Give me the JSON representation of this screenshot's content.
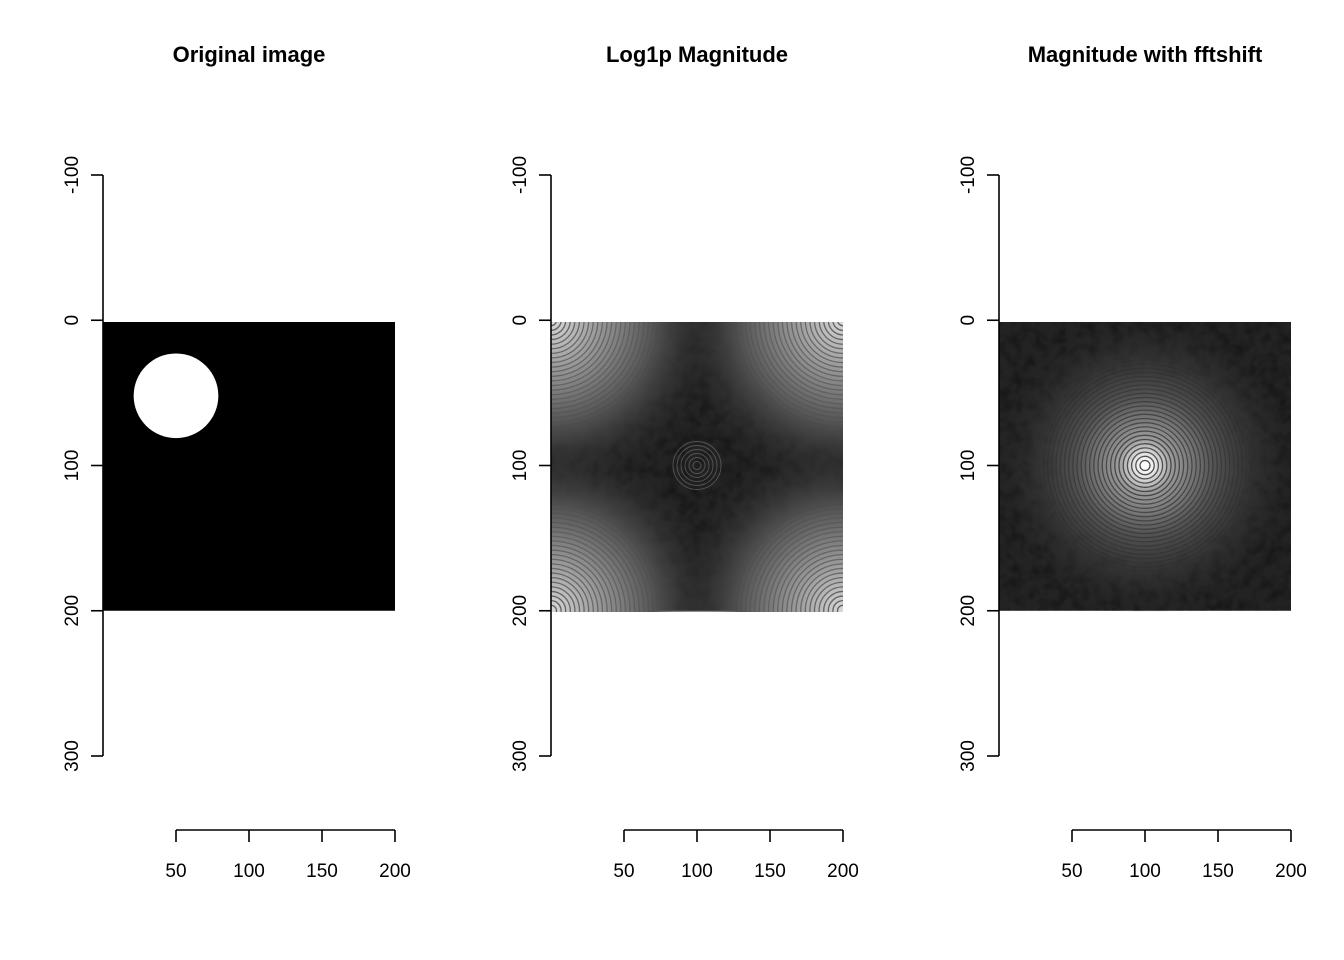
{
  "chart_data": [
    {
      "type": "heatmap",
      "title": "Original image",
      "image": "binary mask with a filled white disk on black",
      "xlabel": "",
      "ylabel": "",
      "xticks": [
        50,
        100,
        150,
        200
      ],
      "yticks": [
        -100,
        0,
        100,
        200,
        300
      ],
      "xlim": [
        0,
        200
      ],
      "ylim": [
        -100,
        300
      ],
      "image_extent": {
        "x": [
          0,
          200
        ],
        "y": [
          0,
          200
        ]
      },
      "disk": {
        "center_x": 50,
        "center_y": 52,
        "radius": 29
      },
      "colors": {
        "background": "#000000",
        "foreground": "#ffffff"
      }
    },
    {
      "type": "heatmap",
      "title": "Log1p Magnitude",
      "image": "log1p FFT magnitude, unshifted; bright ring patterns at corners",
      "xlabel": "",
      "ylabel": "",
      "xticks": [
        50,
        100,
        150,
        200
      ],
      "yticks": [
        -100,
        0,
        100,
        200,
        300
      ],
      "xlim": [
        0,
        200
      ],
      "ylim": [
        -100,
        300
      ],
      "image_extent": {
        "x": [
          0,
          200
        ],
        "y": [
          0,
          200
        ]
      },
      "bright_centers": [
        [
          0,
          0
        ],
        [
          200,
          0
        ],
        [
          0,
          200
        ],
        [
          200,
          200
        ]
      ],
      "colors": {
        "low": "#000000",
        "high": "#ffffff"
      }
    },
    {
      "type": "heatmap",
      "title": "Magnitude with fftshift",
      "image": "shifted FFT magnitude; concentric rings centered in the middle",
      "xlabel": "",
      "ylabel": "",
      "xticks": [
        50,
        100,
        150,
        200
      ],
      "yticks": [
        -100,
        0,
        100,
        200,
        300
      ],
      "xlim": [
        0,
        200
      ],
      "ylim": [
        -100,
        300
      ],
      "image_extent": {
        "x": [
          0,
          200
        ],
        "y": [
          0,
          200
        ]
      },
      "bright_centers": [
        [
          100,
          100
        ]
      ],
      "colors": {
        "low": "#000000",
        "high": "#ffffff"
      }
    }
  ]
}
